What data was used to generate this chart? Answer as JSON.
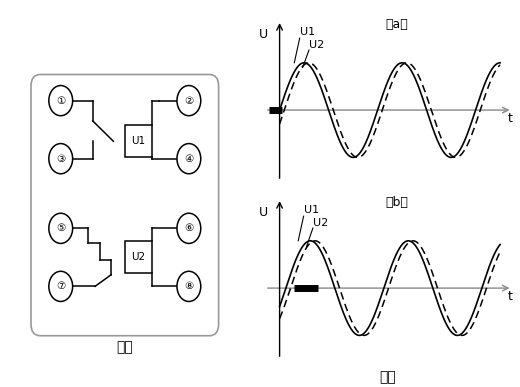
{
  "background": "#ffffff",
  "fig1_label": "图一",
  "fig2_label": "图二",
  "graph_a_label": "（a）",
  "graph_b_label": "（b）",
  "u_label": "U",
  "t_label": "t",
  "u1_label": "U1",
  "u2_label": "U2",
  "line_color": "#000000",
  "axis_color": "#888888",
  "pin_circle_color": "#000000",
  "box_edge_color": "#000000",
  "border_color": "#999999"
}
